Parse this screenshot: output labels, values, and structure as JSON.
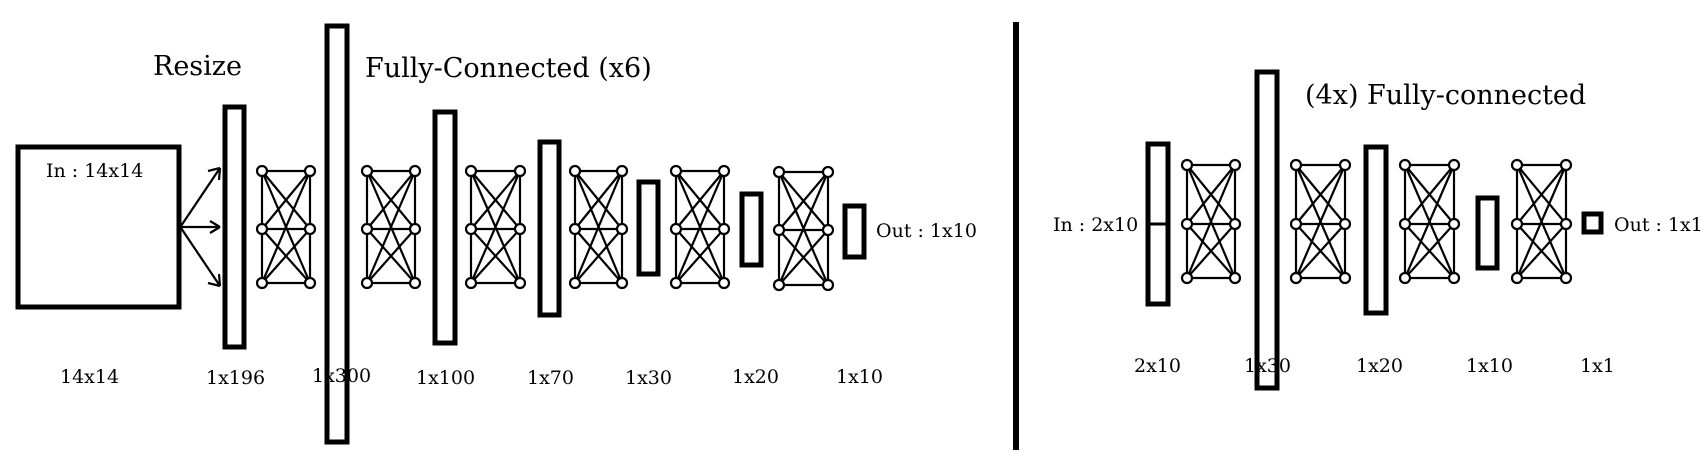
{
  "left": {
    "title_resize": "Resize",
    "title_fc": "Fully-Connected (x6)",
    "input_label": "In : 14x14",
    "output_label": "Out : 1x10",
    "sizes": [
      "14x14",
      "1x196",
      "1x300",
      "1x100",
      "1x70",
      "1x30",
      "1x20",
      "1x10"
    ]
  },
  "right": {
    "title_fc": "(4x) Fully-connected",
    "input_label": "In : 2x10",
    "output_label": "Out : 1x1",
    "sizes": [
      "2x10",
      "1x30",
      "1x20",
      "1x10",
      "1x1"
    ]
  }
}
